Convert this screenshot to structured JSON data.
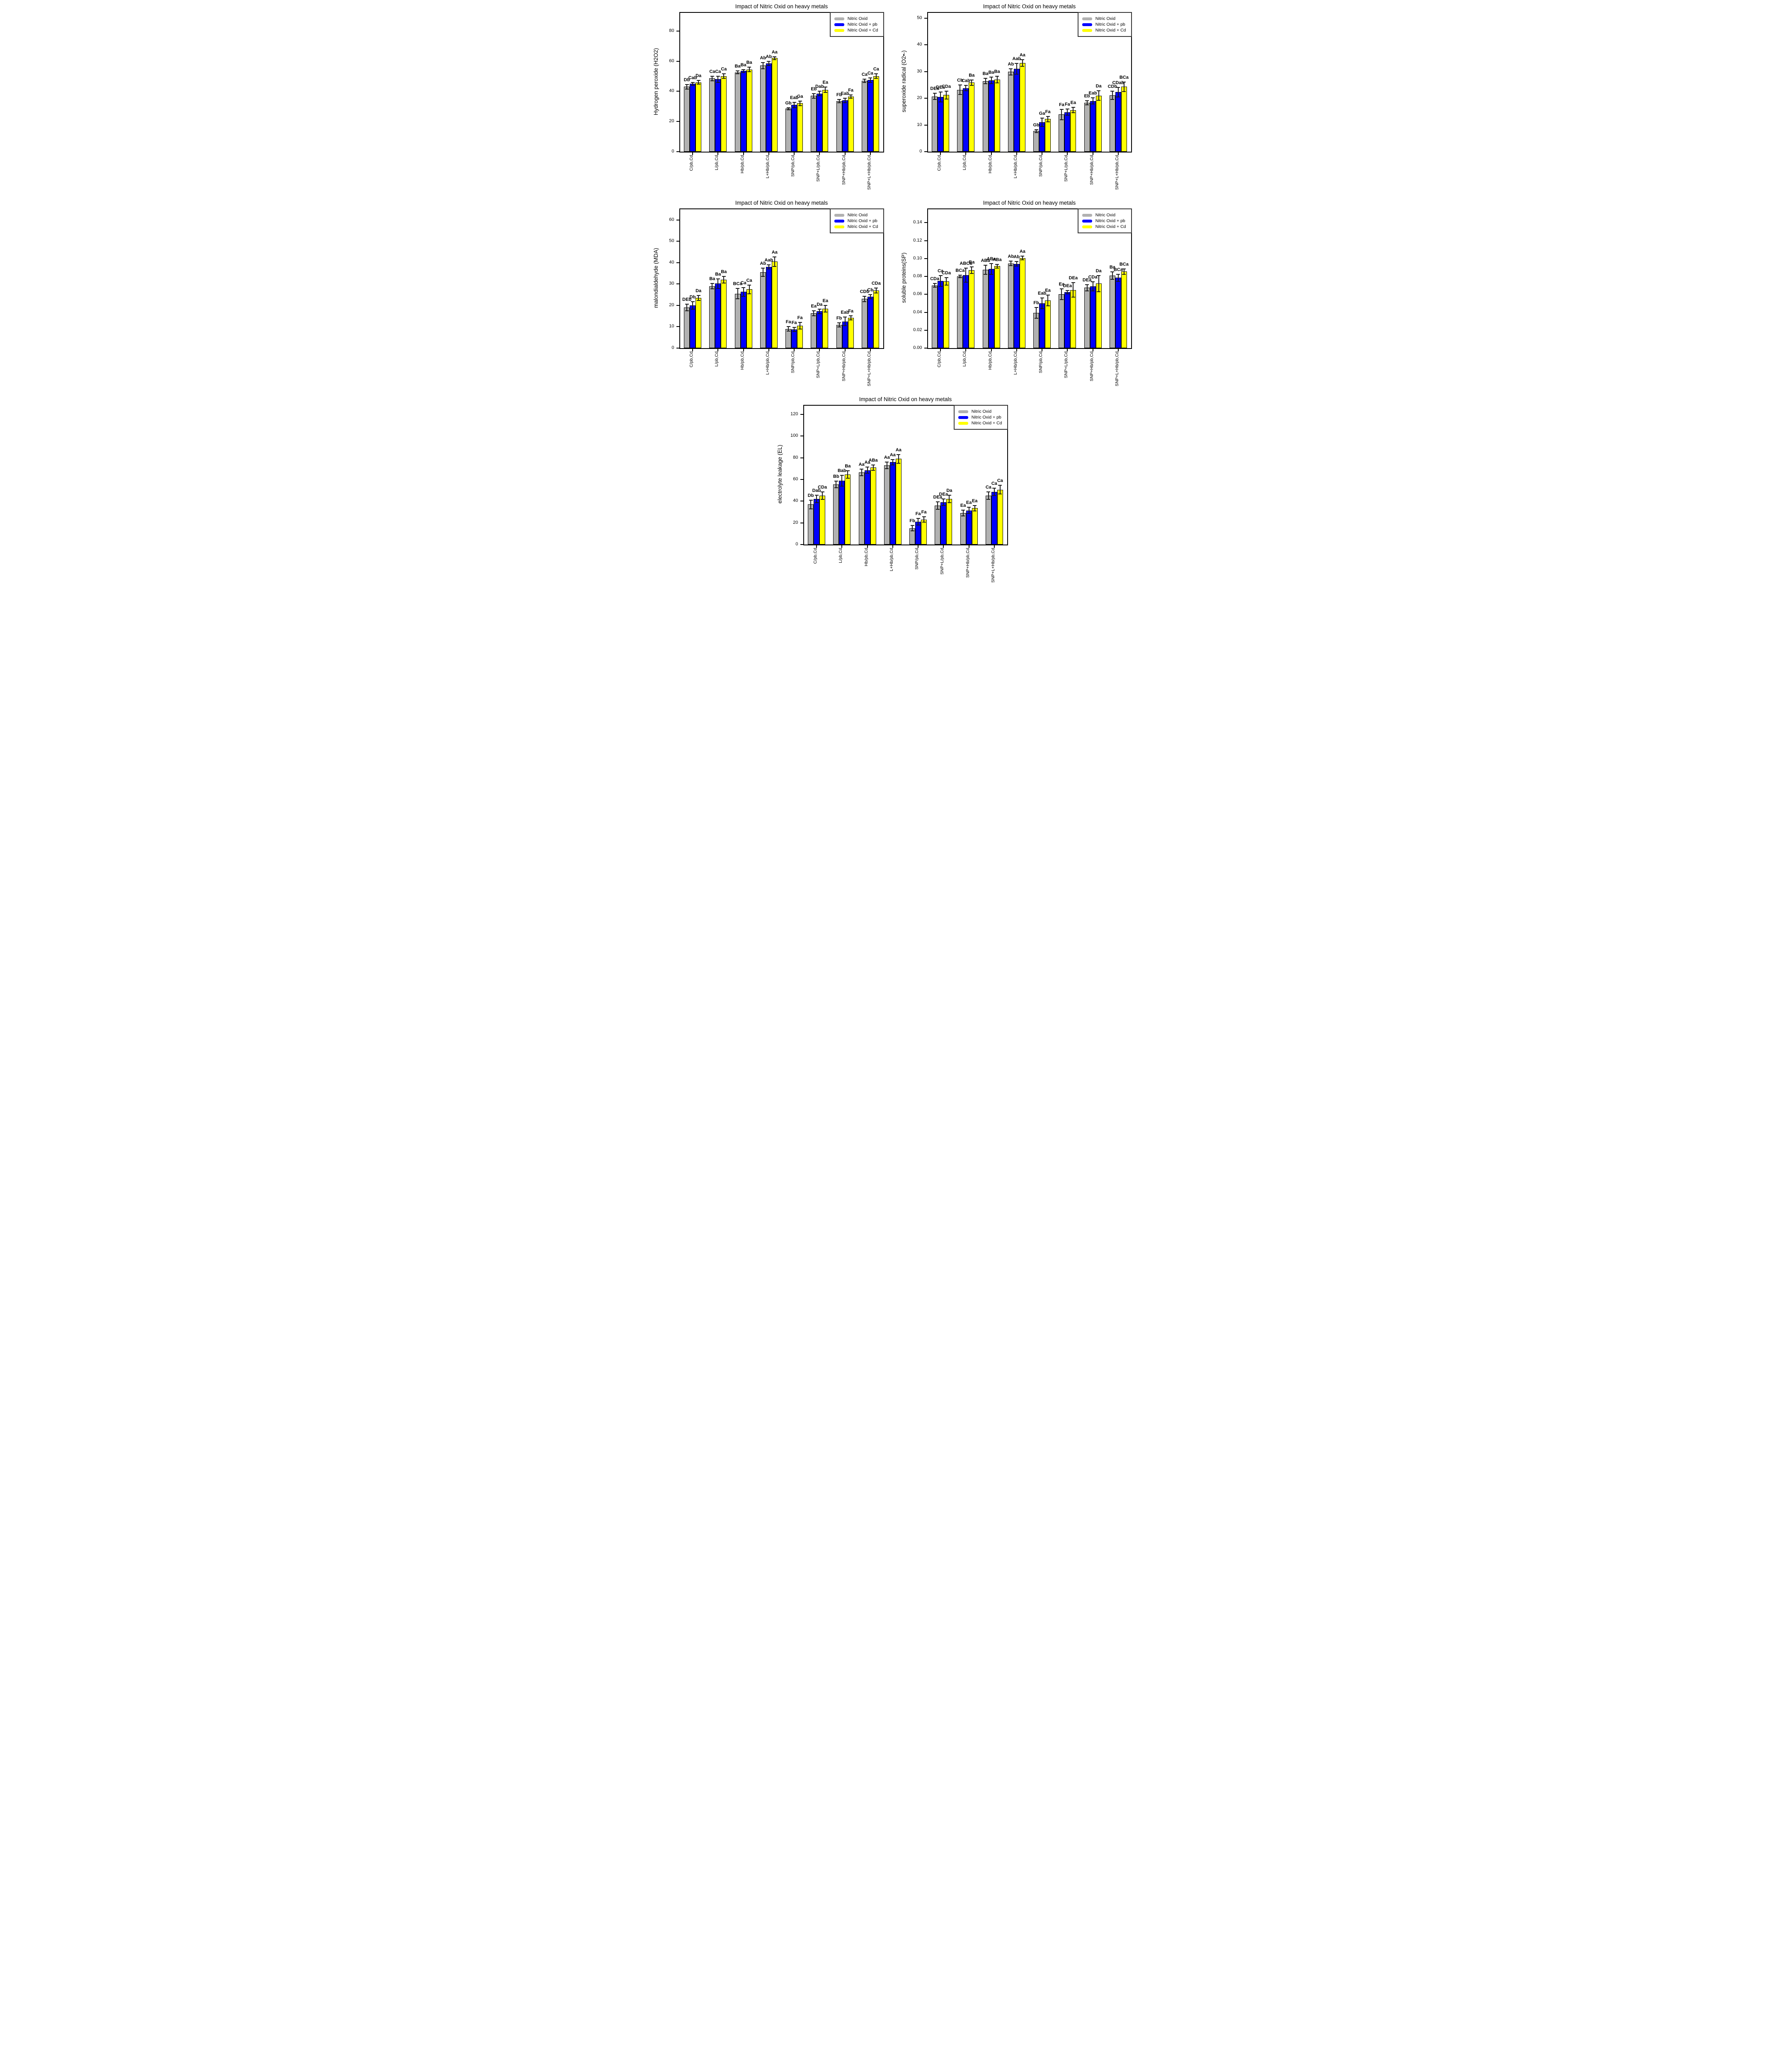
{
  "figure": {
    "background": "#ffffff",
    "series_colors": {
      "control": "#b1b1b1",
      "pb": "#0000ff",
      "cd": "#ffff00"
    },
    "legend": [
      "Nitric Oxid",
      "Nitric Oxid  + pb",
      "Nitric Oxid  + Cd"
    ]
  },
  "chart_data": [
    {
      "type": "bar",
      "title": "Impact of Nitric Oxid on heavy metals",
      "ylabel": "Hydrogen peroxide (H2O2)",
      "xlabel": "",
      "grid": false,
      "legend_position": "top-right",
      "categories": [
        "C/pb,Cd",
        "L/pb,Cd",
        "Hb/pb,Cd",
        "L+Hb/pb,Cd",
        "SNP/pb,Cd",
        "SNP+L/pb,Cd",
        "SNP+Hb/pb,Cd",
        "SNP+L+Hb/pb,Cd"
      ],
      "ylim": [
        0,
        92
      ],
      "yticks": [
        {
          "value": 0,
          "label": "0"
        },
        {
          "value": 20,
          "label": "20"
        },
        {
          "value": 40,
          "label": "40"
        },
        {
          "value": 60,
          "label": "60"
        },
        {
          "value": 80,
          "label": "80"
        }
      ],
      "series": [
        {
          "name": "Nitric Oxid",
          "color": "#b1b1b1",
          "values": [
            43,
            48.5,
            52.5,
            57,
            28.5,
            37,
            33.5,
            47
          ],
          "errors": [
            1.5,
            1.5,
            1,
            2,
            0.7,
            1.5,
            1,
            1
          ],
          "bar_labels": [
            "Db",
            "Ca",
            "Ba",
            "Ab",
            "Gb",
            "Eb",
            "Fb",
            "Ca"
          ]
        },
        {
          "name": "Nitric Oxid  + pb",
          "color": "#0000ff",
          "values": [
            45,
            48,
            53.5,
            58.5,
            31,
            38.5,
            34,
            47.5
          ],
          "errors": [
            1,
            2,
            1,
            1.5,
            1.8,
            1.5,
            1.5,
            1.5
          ],
          "bar_labels": [
            "Cab",
            "Ca",
            "Ba",
            "Ab",
            "Eab",
            "Dab",
            "Eab",
            "Ca"
          ]
        },
        {
          "name": "Nitric Oxid  + Cd",
          "color": "#ffff00",
          "values": [
            46,
            50,
            54.5,
            62,
            32,
            41,
            36.5,
            50
          ],
          "errors": [
            1.2,
            1.5,
            1.5,
            1,
            1.5,
            1.8,
            1,
            1.5
          ],
          "bar_labels": [
            "Da",
            "Ca",
            "Ba",
            "Aa",
            "Ga",
            "Ea",
            "Fa",
            "Ca"
          ]
        }
      ]
    },
    {
      "type": "bar",
      "title": "Impact of Nitric Oxid on heavy metals",
      "ylabel": "superoxide radical (O2•-)",
      "xlabel": "",
      "grid": false,
      "legend_position": "top-right",
      "categories": [
        "C/pb,Cd",
        "L/pb,Cd",
        "Hb/pb,Cd",
        "L+Hb/pb,Cd",
        "SNP/pb,Cd",
        "SNP+L/pb,Cd",
        "SNP+Hb/pb,Cd",
        "SNP+L+Hb/pb,Cd"
      ],
      "ylim": [
        0,
        52
      ],
      "yticks": [
        {
          "value": 0,
          "label": "0"
        },
        {
          "value": 10,
          "label": "10"
        },
        {
          "value": 20,
          "label": "20"
        },
        {
          "value": 30,
          "label": "30"
        },
        {
          "value": 40,
          "label": "40"
        },
        {
          "value": 50,
          "label": "50"
        }
      ],
      "series": [
        {
          "name": "Nitric Oxid",
          "color": "#b1b1b1",
          "values": [
            20.7,
            23.2,
            26.4,
            29.9,
            7.7,
            13.9,
            18.3,
            21.1
          ],
          "errors": [
            1.2,
            1.8,
            1,
            1.2,
            0.6,
            2,
            0.8,
            1.5
          ],
          "bar_labels": [
            "DEa",
            "Cb",
            "Ba",
            "Ab",
            "Gb",
            "Fa",
            "Eb",
            "CDb"
          ]
        },
        {
          "name": "Nitric Oxid  + pb",
          "color": "#0000ff",
          "values": [
            20.5,
            23.8,
            26.7,
            31,
            11,
            14.8,
            19,
            22.3
          ],
          "errors": [
            1.8,
            1,
            1.2,
            2,
            1.5,
            1.2,
            1.2,
            1.8
          ],
          "bar_labels": [
            "DEa",
            "Cab",
            "Ba",
            "Aab",
            "Ga",
            "Fa",
            "Eab",
            "CDab"
          ]
        },
        {
          "name": "Nitric Oxid  + Cd",
          "color": "#ffff00",
          "values": [
            21.2,
            25.9,
            27,
            33.2,
            12.2,
            15.6,
            21,
            24.3
          ],
          "errors": [
            1.5,
            1,
            1.2,
            1.2,
            1,
            1,
            1.8,
            1.8
          ],
          "bar_labels": [
            "CDa",
            "Ba",
            "Ba",
            "Aa",
            "Fa",
            "Ea",
            "Da",
            "BCa"
          ]
        }
      ]
    },
    {
      "type": "bar",
      "title": "Impact of Nitric Oxid on heavy metals",
      "ylabel": "malondialdehyde (MDA)",
      "xlabel": "",
      "grid": false,
      "legend_position": "top-right",
      "categories": [
        "C/pb,Cd",
        "L/pb,Cd",
        "Hb/pb,Cd",
        "L+Hb/pb,Cd",
        "SNP/pb,Cd",
        "SNP+L/pb,Cd",
        "SNP+Hb/pb,Cd",
        "SNP+L+Hb/pb,Cd"
      ],
      "ylim": [
        0,
        65
      ],
      "yticks": [
        {
          "value": 0,
          "label": "0"
        },
        {
          "value": 10,
          "label": "10"
        },
        {
          "value": 20,
          "label": "20"
        },
        {
          "value": 30,
          "label": "30"
        },
        {
          "value": 40,
          "label": "40"
        },
        {
          "value": 50,
          "label": "50"
        },
        {
          "value": 60,
          "label": "60"
        }
      ],
      "series": [
        {
          "name": "Nitric Oxid",
          "color": "#b1b1b1",
          "values": [
            19,
            29,
            25.5,
            35.5,
            9,
            16.3,
            10.8,
            23
          ],
          "errors": [
            1.5,
            1.2,
            2.5,
            2,
            1,
            1.2,
            1,
            1.2
          ],
          "bar_labels": [
            "DEb",
            "Ba",
            "BCa",
            "Ab",
            "Fa",
            "Ea",
            "Fb",
            "CDb"
          ]
        },
        {
          "name": "Nitric Oxid  + pb",
          "color": "#0000ff",
          "values": [
            20,
            30.2,
            26.3,
            38,
            8.7,
            17.2,
            12.5,
            24
          ],
          "errors": [
            1.8,
            2.2,
            2,
            1,
            1,
            1,
            2,
            1
          ],
          "bar_labels": [
            "Db",
            "Ba",
            "Ca",
            "Aab",
            "Fa",
            "Da",
            "Eab",
            "Cb"
          ]
        },
        {
          "name": "Nitric Oxid  + Cd",
          "color": "#ffff00",
          "values": [
            23.5,
            32,
            27.5,
            40.5,
            10.5,
            18.4,
            14.2,
            27
          ],
          "errors": [
            1.2,
            1.5,
            2,
            2.2,
            1.5,
            1.5,
            1,
            1.2
          ],
          "bar_labels": [
            "Da",
            "Ba",
            "Ca",
            "Aa",
            "Fa",
            "Ea",
            "Fa",
            "CDa"
          ]
        }
      ]
    },
    {
      "type": "bar",
      "title": "Impact of Nitric Oxid on heavy metals",
      "ylabel": "soluble proteins(SP)",
      "xlabel": "",
      "grid": false,
      "legend_position": "top-right",
      "categories": [
        "C/pb,Cd",
        "L/pb,Cd",
        "Hb/pb,Cd",
        "L+Hb/pb,Cd",
        "SNP/pb,Cd",
        "SNP+L/pb,Cd",
        "SNP+Hb/pb,Cd",
        "SNP+L+Hb/pb,Cd"
      ],
      "ylim": [
        0,
        0.155
      ],
      "yticks": [
        {
          "value": 0,
          "label": "0.00"
        },
        {
          "value": 0.02,
          "label": "0.02"
        },
        {
          "value": 0.04,
          "label": "0.04"
        },
        {
          "value": 0.06,
          "label": "0.06"
        },
        {
          "value": 0.08,
          "label": "0.08"
        },
        {
          "value": 0.1,
          "label": "0.10"
        },
        {
          "value": 0.12,
          "label": "0.12"
        },
        {
          "value": 0.14,
          "label": "0.14"
        }
      ],
      "series": [
        {
          "name": "Nitric Oxid",
          "color": "#b1b1b1",
          "values": [
            0.07,
            0.08,
            0.0875,
            0.0945,
            0.0395,
            0.06,
            0.0675,
            0.081
          ],
          "errors": [
            0.002,
            0.0015,
            0.005,
            0.0025,
            0.006,
            0.006,
            0.0035,
            0.004
          ],
          "bar_labels": [
            "CDa",
            "BCa",
            "ABa",
            "Ab",
            "Fb",
            "Ea",
            "DEa",
            "Ba"
          ]
        },
        {
          "name": "Nitric Oxid  + pb",
          "color": "#0000ff",
          "values": [
            0.075,
            0.0815,
            0.0885,
            0.094,
            0.05,
            0.0625,
            0.069,
            0.0785
          ],
          "errors": [
            0.006,
            0.008,
            0.006,
            0.0025,
            0.006,
            0.002,
            0.005,
            0.004
          ],
          "bar_labels": [
            "Ca",
            "ABCa",
            "ABa",
            "Ab",
            "Eab",
            "DEa",
            "CDa",
            "BCa"
          ]
        },
        {
          "name": "Nitric Oxid  + Cd",
          "color": "#ffff00",
          "values": [
            0.0745,
            0.087,
            0.0915,
            0.1005,
            0.053,
            0.065,
            0.072,
            0.0855
          ],
          "errors": [
            0.004,
            0.0035,
            0.002,
            0.002,
            0.006,
            0.008,
            0.009,
            0.003
          ],
          "bar_labels": [
            "CDa",
            "Ba",
            "ABa",
            "Aa",
            "Ea",
            "DEa",
            "Da",
            "BCa"
          ]
        }
      ]
    },
    {
      "type": "bar",
      "title": "Impact of Nitric Oxid on heavy metals",
      "ylabel": "electrolyte leakage (EL)",
      "xlabel": "",
      "grid": false,
      "legend_position": "top-right",
      "categories": [
        "C/pb,Cd",
        "L/pb,Cd",
        "Hb/pb,Cd",
        "L+Hb/pb,Cd",
        "SNP/pb,Cd",
        "SNP+L/pb,Cd",
        "SNP+Hb/pb,Cd",
        "SNP+L+Hb/pb,Cd"
      ],
      "ylim": [
        0,
        128
      ],
      "yticks": [
        {
          "value": 0,
          "label": "0"
        },
        {
          "value": 20,
          "label": "20"
        },
        {
          "value": 40,
          "label": "40"
        },
        {
          "value": 60,
          "label": "60"
        },
        {
          "value": 80,
          "label": "80"
        },
        {
          "value": 100,
          "label": "100"
        },
        {
          "value": 120,
          "label": "120"
        }
      ],
      "series": [
        {
          "name": "Nitric Oxid",
          "color": "#b1b1b1",
          "values": [
            37,
            55.5,
            66.5,
            73,
            15,
            36,
            29,
            45
          ],
          "errors": [
            4,
            3,
            3,
            3,
            2.5,
            3.5,
            2.8,
            3.5
          ],
          "bar_labels": [
            "Db",
            "Bb",
            "Aa",
            "Aa",
            "Fb",
            "DEa",
            "Ea",
            "Ca"
          ]
        },
        {
          "name": "Nitric Oxid  + pb",
          "color": "#0000ff",
          "values": [
            42,
            59,
            68.5,
            76,
            21,
            39,
            31.5,
            48.5
          ],
          "errors": [
            3.5,
            5,
            2.8,
            2.5,
            3,
            3,
            3,
            3.5
          ],
          "bar_labels": [
            "Dab",
            "Bab",
            "Aa",
            "Aa",
            "Fa",
            "DEa",
            "Ea",
            "Ca"
          ]
        },
        {
          "name": "Nitric Oxid  + Cd",
          "color": "#ffff00",
          "values": [
            45,
            64.5,
            71,
            79,
            23,
            42,
            33.5,
            50.5
          ],
          "errors": [
            3.5,
            3.5,
            2.5,
            4,
            2.5,
            3.5,
            2.5,
            4
          ],
          "bar_labels": [
            "CDa",
            "Ba",
            "ABa",
            "Aa",
            "Fa",
            "Da",
            "Ea",
            "Ca"
          ]
        }
      ]
    }
  ]
}
